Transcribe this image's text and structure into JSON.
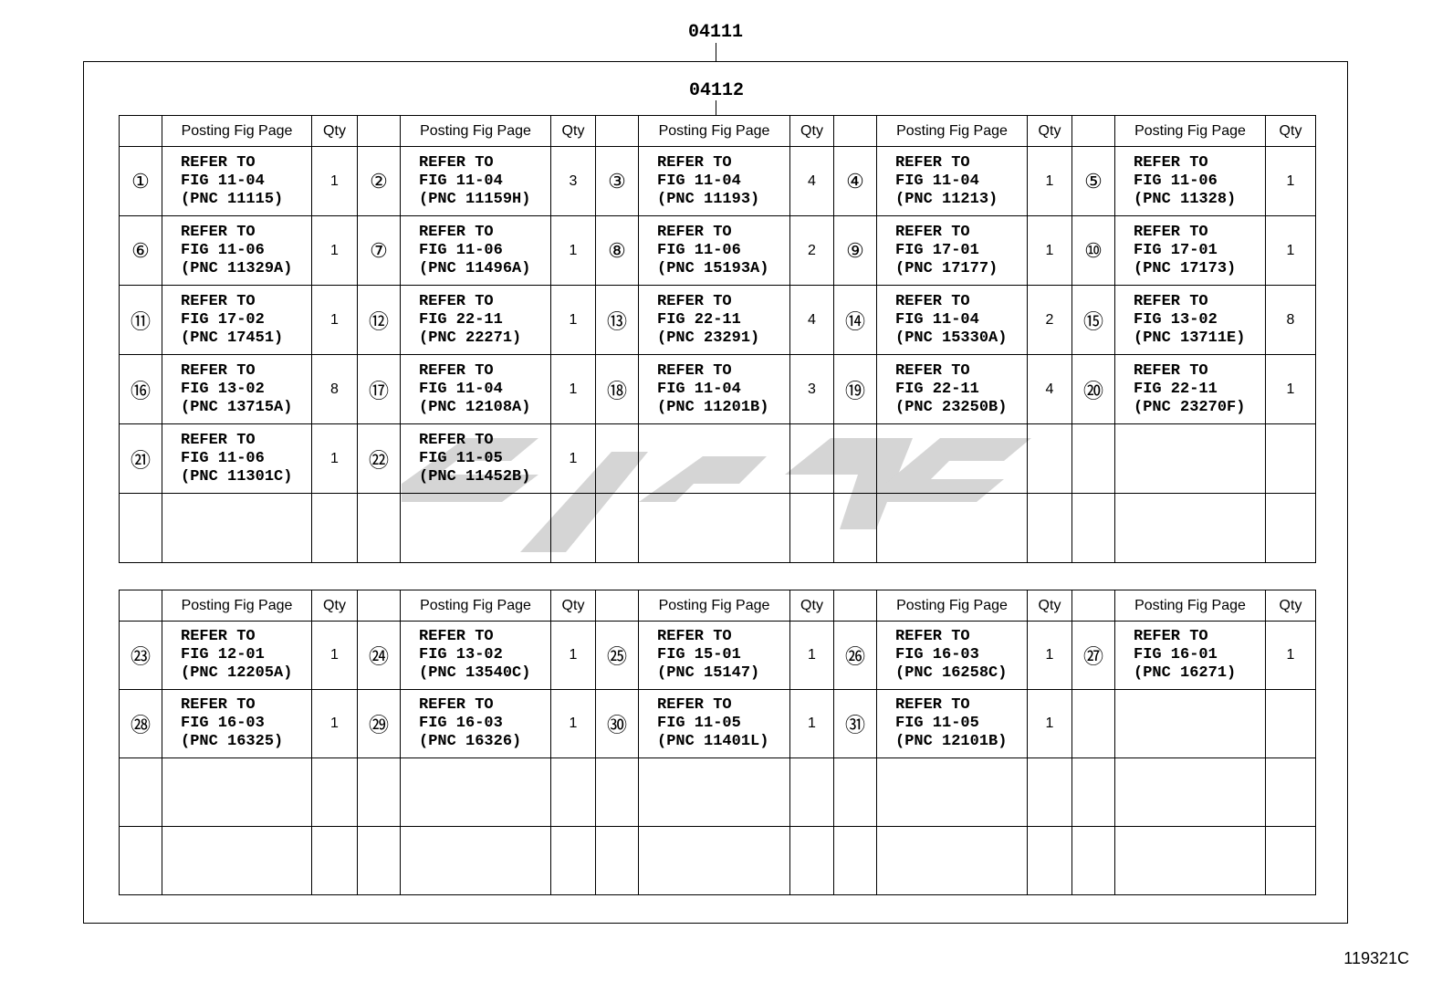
{
  "labels": {
    "assembly": "04111",
    "subassembly": "04112",
    "figure_id": "119321C"
  },
  "header": {
    "no": "",
    "posting": "Posting Fig Page",
    "qty": "Qty"
  },
  "tables": [
    {
      "rows": [
        [
          {
            "no": "①",
            "ref": "REFER TO\nFIG 11-04\n(PNC 11115)",
            "qty": "1"
          },
          {
            "no": "②",
            "ref": "REFER TO\nFIG 11-04\n(PNC 11159H)",
            "qty": "3"
          },
          {
            "no": "③",
            "ref": "REFER TO\nFIG 11-04\n(PNC 11193)",
            "qty": "4"
          },
          {
            "no": "④",
            "ref": "REFER TO\nFIG 11-04\n(PNC 11213)",
            "qty": "1"
          },
          {
            "no": "⑤",
            "ref": "REFER TO\nFIG 11-06\n(PNC 11328)",
            "qty": "1"
          }
        ],
        [
          {
            "no": "⑥",
            "ref": "REFER TO\nFIG 11-06\n(PNC 11329A)",
            "qty": "1"
          },
          {
            "no": "⑦",
            "ref": "REFER TO\nFIG 11-06\n(PNC 11496A)",
            "qty": "1"
          },
          {
            "no": "⑧",
            "ref": "REFER TO\nFIG 11-06\n(PNC 15193A)",
            "qty": "2"
          },
          {
            "no": "⑨",
            "ref": "REFER TO\nFIG 17-01\n(PNC 17177)",
            "qty": "1"
          },
          {
            "no": "⑩",
            "ref": "REFER TO\nFIG 17-01\n(PNC 17173)",
            "qty": "1"
          }
        ],
        [
          {
            "no": "⑪",
            "ref": "REFER TO\nFIG 17-02\n(PNC 17451)",
            "qty": "1"
          },
          {
            "no": "⑫",
            "ref": "REFER TO\nFIG 22-11\n(PNC 22271)",
            "qty": "1"
          },
          {
            "no": "⑬",
            "ref": "REFER TO\nFIG 22-11\n(PNC 23291)",
            "qty": "4"
          },
          {
            "no": "⑭",
            "ref": "REFER TO\nFIG 11-04\n(PNC 15330A)",
            "qty": "2"
          },
          {
            "no": "⑮",
            "ref": "REFER TO\nFIG 13-02\n(PNC 13711E)",
            "qty": "8"
          }
        ],
        [
          {
            "no": "⑯",
            "ref": "REFER TO\nFIG 13-02\n(PNC 13715A)",
            "qty": "8"
          },
          {
            "no": "⑰",
            "ref": "REFER TO\nFIG 11-04\n(PNC 12108A)",
            "qty": "1"
          },
          {
            "no": "⑱",
            "ref": "REFER TO\nFIG 11-04\n(PNC 11201B)",
            "qty": "3"
          },
          {
            "no": "⑲",
            "ref": "REFER TO\nFIG 22-11\n(PNC 23250B)",
            "qty": "4"
          },
          {
            "no": "⑳",
            "ref": "REFER TO\nFIG 22-11\n(PNC 23270F)",
            "qty": "1"
          }
        ],
        [
          {
            "no": "㉑",
            "ref": "REFER TO\nFIG 11-06\n(PNC 11301C)",
            "qty": "1"
          },
          {
            "no": "㉒",
            "ref": "REFER TO\nFIG 11-05\n(PNC 11452B)",
            "qty": "1"
          },
          {
            "no": "",
            "ref": "",
            "qty": ""
          },
          {
            "no": "",
            "ref": "",
            "qty": ""
          },
          {
            "no": "",
            "ref": "",
            "qty": ""
          }
        ],
        [
          {
            "no": "",
            "ref": "",
            "qty": ""
          },
          {
            "no": "",
            "ref": "",
            "qty": ""
          },
          {
            "no": "",
            "ref": "",
            "qty": ""
          },
          {
            "no": "",
            "ref": "",
            "qty": ""
          },
          {
            "no": "",
            "ref": "",
            "qty": ""
          }
        ]
      ]
    },
    {
      "rows": [
        [
          {
            "no": "㉓",
            "ref": "REFER TO\nFIG 12-01\n(PNC 12205A)",
            "qty": "1"
          },
          {
            "no": "㉔",
            "ref": "REFER TO\nFIG 13-02\n(PNC 13540C)",
            "qty": "1"
          },
          {
            "no": "㉕",
            "ref": "REFER TO\nFIG 15-01\n(PNC 15147)",
            "qty": "1"
          },
          {
            "no": "㉖",
            "ref": "REFER TO\nFIG 16-03\n(PNC 16258C)",
            "qty": "1"
          },
          {
            "no": "㉗",
            "ref": "REFER TO\nFIG 16-01\n(PNC 16271)",
            "qty": "1"
          }
        ],
        [
          {
            "no": "㉘",
            "ref": "REFER TO\nFIG 16-03\n(PNC 16325)",
            "qty": "1"
          },
          {
            "no": "㉙",
            "ref": "REFER TO\nFIG 16-03\n(PNC 16326)",
            "qty": "1"
          },
          {
            "no": "㉚",
            "ref": "REFER TO\nFIG 11-05\n(PNC 11401L)",
            "qty": "1"
          },
          {
            "no": "㉛",
            "ref": "REFER TO\nFIG 11-05\n(PNC 12101B)",
            "qty": "1"
          },
          {
            "no": "",
            "ref": "",
            "qty": ""
          }
        ],
        [
          {
            "no": "",
            "ref": "",
            "qty": ""
          },
          {
            "no": "",
            "ref": "",
            "qty": ""
          },
          {
            "no": "",
            "ref": "",
            "qty": ""
          },
          {
            "no": "",
            "ref": "",
            "qty": ""
          },
          {
            "no": "",
            "ref": "",
            "qty": ""
          }
        ],
        [
          {
            "no": "",
            "ref": "",
            "qty": ""
          },
          {
            "no": "",
            "ref": "",
            "qty": ""
          },
          {
            "no": "",
            "ref": "",
            "qty": ""
          },
          {
            "no": "",
            "ref": "",
            "qty": ""
          },
          {
            "no": "",
            "ref": "",
            "qty": ""
          }
        ]
      ]
    }
  ]
}
